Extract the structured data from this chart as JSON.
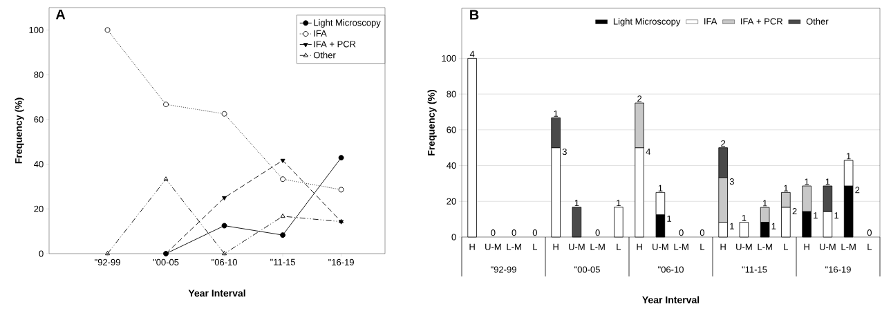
{
  "chart_data": [
    {
      "type": "line",
      "title": "A",
      "xlabel": "Year Interval",
      "ylabel": "Frequency (%)",
      "categories": [
        "\"92-99",
        "\"00-05",
        "\"06-10",
        "\"11-15",
        "\"16-19"
      ],
      "ylim": [
        0,
        110
      ],
      "yticks": [
        0,
        20,
        40,
        60,
        80,
        100
      ],
      "legend": "top right",
      "series": [
        {
          "name": "Light Microscopy",
          "color": "#000000",
          "marker": "circle",
          "line_style": "solid",
          "values": [
            null,
            0,
            12.5,
            8.3,
            42.9
          ]
        },
        {
          "name": "IFA",
          "color": "#000000",
          "marker": "circle-open",
          "line_style": "dotted",
          "values": [
            100,
            66.7,
            62.5,
            33.3,
            28.6
          ]
        },
        {
          "name": "IFA + PCR",
          "color": "#000000",
          "marker": "triangle-down",
          "line_style": "dashed",
          "values": [
            null,
            0,
            25,
            41.7,
            14.3
          ]
        },
        {
          "name": "Other",
          "color": "#000000",
          "marker": "triangle-open",
          "line_style": "dashdot",
          "values": [
            0,
            33.3,
            0,
            16.7,
            14.3
          ]
        }
      ]
    },
    {
      "type": "bar",
      "stacked": true,
      "title": "B",
      "xlabel": "Year Interval",
      "ylabel": "Frequency (%)",
      "categories": [
        "H",
        "U-M",
        "L-M",
        "L",
        "H",
        "U-M",
        "L-M",
        "L",
        "H",
        "U-M",
        "L-M",
        "L",
        "H",
        "U-M",
        "L-M",
        "L",
        "H",
        "U-M",
        "L-M",
        "L"
      ],
      "annotations": [
        "4",
        "0",
        "0",
        "0",
        "3",
        "1",
        "1",
        "0",
        "1",
        "4",
        "2",
        "1",
        "1",
        "0",
        "0",
        "1",
        "3",
        "2",
        "1",
        "1",
        "1",
        "2",
        "1",
        "1",
        "1",
        "1",
        "1",
        "2",
        "1",
        "0",
        "\"92-99",
        "\"00-05",
        "\"06-10",
        "\"11-15",
        "\"16-19"
      ],
      "ylim": [
        0,
        128
      ],
      "yticks": [
        0,
        20,
        40,
        60,
        80,
        100
      ],
      "grid": "y",
      "legend": "top",
      "series": [
        {
          "name": "Light Microscopy",
          "color": "#000000",
          "values": [
            null,
            null,
            null,
            null,
            null,
            null,
            null,
            null,
            null,
            12.5,
            null,
            null,
            null,
            null,
            8.3,
            null,
            14.3,
            null,
            28.6,
            null
          ]
        },
        {
          "name": "IFA",
          "color": "#ffffff",
          "values": [
            100,
            null,
            null,
            null,
            50,
            null,
            null,
            16.7,
            50,
            12.5,
            null,
            null,
            8.3,
            8.3,
            null,
            16.7,
            null,
            14.3,
            14.3,
            null
          ]
        },
        {
          "name": "IFA + PCR",
          "color": "#c8c8c8",
          "values": [
            null,
            null,
            null,
            null,
            null,
            null,
            null,
            null,
            25,
            null,
            null,
            null,
            25,
            null,
            8.3,
            8.3,
            14.3,
            null,
            null,
            null
          ]
        },
        {
          "name": "Other",
          "color": "#4a4a4a",
          "values": [
            null,
            null,
            null,
            null,
            16.7,
            16.7,
            null,
            null,
            null,
            null,
            null,
            null,
            16.7,
            null,
            null,
            null,
            null,
            14.3,
            null,
            null
          ]
        }
      ]
    }
  ]
}
